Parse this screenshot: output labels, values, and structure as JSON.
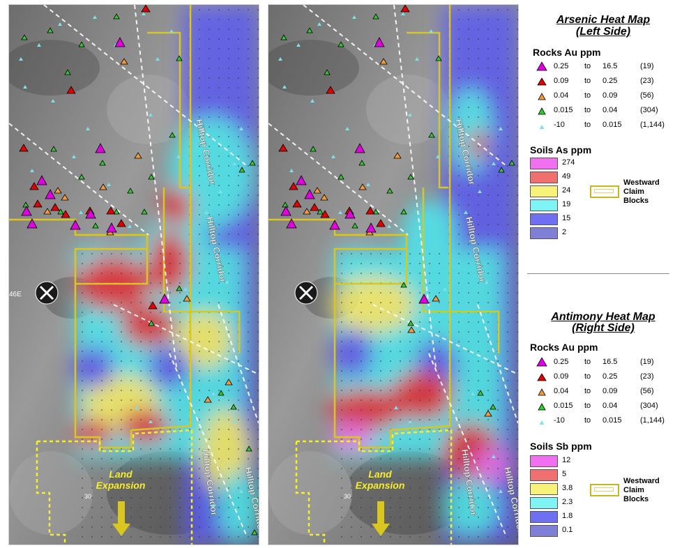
{
  "maps": {
    "corridor_label": "Hilltop Corridor",
    "expansion_line1": "Land",
    "expansion_line2": "Expansion",
    "road_label_1": "46E",
    "road_label_2": "30",
    "mine_icon": "crossed-hammers-icon"
  },
  "legend_top": {
    "title_line1": "Arsenic Heat Map",
    "title_line2": "(Left Side)",
    "rocks_title": "Rocks Au ppm",
    "rocks": [
      {
        "from": "0.25",
        "to_word": "to",
        "to": "16.5",
        "count": "(19)",
        "color": "#e000e0",
        "symbol": "triangle-large"
      },
      {
        "from": "0.09",
        "to_word": "to",
        "to": "0.25",
        "count": "(23)",
        "color": "#e00000",
        "symbol": "triangle-medium"
      },
      {
        "from": "0.04",
        "to_word": "to",
        "to": "0.09",
        "count": "(56)",
        "color": "#f59a3a",
        "symbol": "triangle-small"
      },
      {
        "from": "0.015",
        "to_word": "to",
        "to": "0.04",
        "count": "(304)",
        "color": "#2ecc2e",
        "symbol": "triangle-small"
      },
      {
        "from": "-10",
        "to_word": "to",
        "to": "0.015",
        "count": "(1,144)",
        "color": "#7fe0e8",
        "symbol": "triangle-tiny"
      }
    ],
    "soils_title": "Soils As ppm",
    "soils": [
      {
        "value": "274",
        "color": "#f070f0"
      },
      {
        "value": "49",
        "color": "#f07070"
      },
      {
        "value": "24",
        "color": "#f6f27a"
      },
      {
        "value": "19",
        "color": "#7ff4f4"
      },
      {
        "value": "15",
        "color": "#6f6ff2"
      },
      {
        "value": "2",
        "color": "#7f7fd8"
      }
    ],
    "claim_label_1": "Westward",
    "claim_label_2": "Claim",
    "claim_label_3": "Blocks"
  },
  "legend_bottom": {
    "title_line1": "Antimony Heat Map",
    "title_line2": "(Right Side)",
    "rocks_title": "Rocks Au ppm",
    "rocks": [
      {
        "from": "0.25",
        "to_word": "to",
        "to": "16.5",
        "count": "(19)",
        "color": "#e000e0",
        "symbol": "triangle-large"
      },
      {
        "from": "0.09",
        "to_word": "to",
        "to": "0.25",
        "count": "(23)",
        "color": "#e00000",
        "symbol": "triangle-medium"
      },
      {
        "from": "0.04",
        "to_word": "to",
        "to": "0.09",
        "count": "(56)",
        "color": "#f59a3a",
        "symbol": "triangle-small"
      },
      {
        "from": "0.015",
        "to_word": "to",
        "to": "0.04",
        "count": "(304)",
        "color": "#2ecc2e",
        "symbol": "triangle-small"
      },
      {
        "from": "-10",
        "to_word": "to",
        "to": "0.015",
        "count": "(1,144)",
        "color": "#7fe0e8",
        "symbol": "triangle-tiny"
      }
    ],
    "soils_title": "Soils Sb ppm",
    "soils": [
      {
        "value": "12",
        "color": "#f070f0"
      },
      {
        "value": "5",
        "color": "#f07070"
      },
      {
        "value": "3.8",
        "color": "#f6f27a"
      },
      {
        "value": "2.3",
        "color": "#7ff4f4"
      },
      {
        "value": "1.8",
        "color": "#6f6ff2"
      },
      {
        "value": "0.1",
        "color": "#7f7fd8"
      }
    ],
    "claim_label_1": "Westward",
    "claim_label_2": "Claim",
    "claim_label_3": "Blocks"
  }
}
